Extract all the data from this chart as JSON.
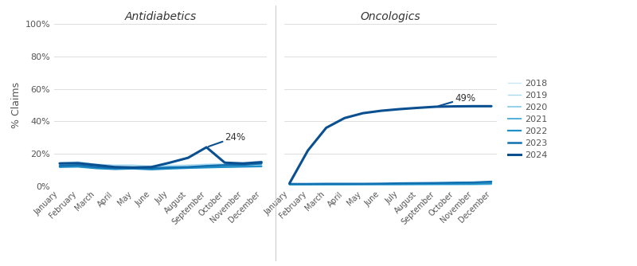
{
  "months": [
    "January",
    "February",
    "March",
    "April",
    "May",
    "June",
    "July",
    "August",
    "September",
    "October",
    "November",
    "December"
  ],
  "years": [
    "2018",
    "2019",
    "2020",
    "2021",
    "2022",
    "2023",
    "2024"
  ],
  "colors": {
    "2018": "#c8e8f5",
    "2019": "#aadaf0",
    "2020": "#80c8e8",
    "2021": "#50b0dd",
    "2022": "#2090c8",
    "2023": "#1070b0",
    "2024": "#0a5090"
  },
  "linewidths": {
    "2018": 1.0,
    "2019": 1.0,
    "2020": 1.2,
    "2021": 1.4,
    "2022": 1.6,
    "2023": 1.8,
    "2024": 2.2
  },
  "antidiabetics": {
    "2018": [
      0.135,
      0.145,
      0.135,
      0.13,
      0.13,
      0.125,
      0.13,
      0.13,
      0.135,
      0.14,
      0.145,
      0.155
    ],
    "2019": [
      0.145,
      0.15,
      0.135,
      0.13,
      0.13,
      0.12,
      0.125,
      0.13,
      0.135,
      0.135,
      0.14,
      0.145
    ],
    "2020": [
      0.13,
      0.135,
      0.125,
      0.12,
      0.12,
      0.115,
      0.12,
      0.12,
      0.125,
      0.13,
      0.13,
      0.135
    ],
    "2021": [
      0.12,
      0.125,
      0.115,
      0.11,
      0.11,
      0.108,
      0.112,
      0.115,
      0.118,
      0.12,
      0.122,
      0.125
    ],
    "2022": [
      0.118,
      0.12,
      0.11,
      0.105,
      0.108,
      0.103,
      0.108,
      0.112,
      0.115,
      0.118,
      0.12,
      0.122
    ],
    "2023": [
      0.125,
      0.13,
      0.118,
      0.112,
      0.112,
      0.11,
      0.115,
      0.118,
      0.125,
      0.13,
      0.132,
      0.14
    ],
    "2024": [
      0.14,
      0.142,
      0.13,
      0.118,
      0.115,
      0.118,
      0.145,
      0.175,
      0.24,
      0.145,
      0.14,
      0.148
    ]
  },
  "oncologics": {
    "2018": [
      0.008,
      0.008,
      0.008,
      0.008,
      0.008,
      0.008,
      0.009,
      0.009,
      0.009,
      0.009,
      0.009,
      0.01
    ],
    "2019": [
      0.009,
      0.009,
      0.009,
      0.009,
      0.009,
      0.009,
      0.01,
      0.01,
      0.01,
      0.01,
      0.01,
      0.011
    ],
    "2020": [
      0.01,
      0.01,
      0.01,
      0.01,
      0.01,
      0.01,
      0.011,
      0.011,
      0.011,
      0.011,
      0.012,
      0.013
    ],
    "2021": [
      0.011,
      0.011,
      0.011,
      0.011,
      0.011,
      0.012,
      0.012,
      0.012,
      0.013,
      0.013,
      0.013,
      0.015
    ],
    "2022": [
      0.012,
      0.012,
      0.012,
      0.012,
      0.013,
      0.013,
      0.013,
      0.014,
      0.014,
      0.015,
      0.015,
      0.018
    ],
    "2023": [
      0.014,
      0.014,
      0.015,
      0.015,
      0.015,
      0.016,
      0.018,
      0.019,
      0.02,
      0.022,
      0.023,
      0.028
    ],
    "2024": [
      0.018,
      0.22,
      0.36,
      0.42,
      0.45,
      0.465,
      0.475,
      0.483,
      0.49,
      0.492,
      0.493,
      0.493
    ]
  },
  "antidiabetics_annotation": {
    "text": "24%",
    "month_idx": 8,
    "value": 0.24
  },
  "oncologics_annotation": {
    "text": "49%",
    "month_idx": 8,
    "value": 0.49
  },
  "title_antidiabetics": "Antidiabetics",
  "title_oncologics": "Oncologics",
  "ylabel": "% Claims",
  "ylim": [
    0.0,
    1.0
  ],
  "yticks": [
    0.0,
    0.2,
    0.4,
    0.6,
    0.8,
    1.0
  ],
  "background_color": "#ffffff",
  "grid_color": "#d8d8d8"
}
